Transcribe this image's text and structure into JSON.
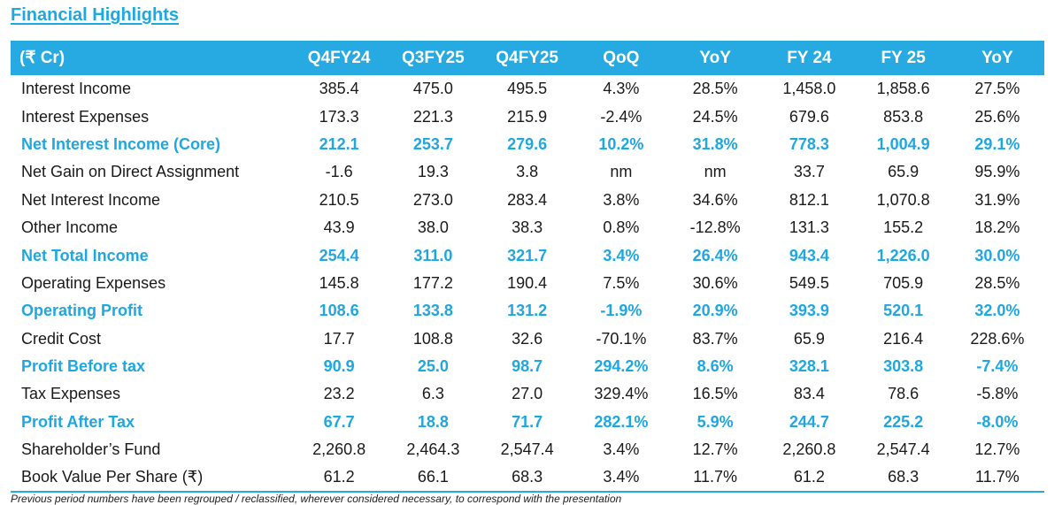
{
  "title": "Financial Highlights",
  "header": [
    "(₹ Cr)",
    "Q4FY24",
    "Q3FY25",
    "Q4FY25",
    "QoQ",
    "YoY",
    "FY 24",
    "FY 25",
    "YoY"
  ],
  "rows": [
    {
      "highlight": false,
      "cells": [
        "Interest Income",
        "385.4",
        "475.0",
        "495.5",
        "4.3%",
        "28.5%",
        "1,458.0",
        "1,858.6",
        "27.5%"
      ]
    },
    {
      "highlight": false,
      "cells": [
        "Interest Expenses",
        "173.3",
        "221.3",
        "215.9",
        "-2.4%",
        "24.5%",
        "679.6",
        "853.8",
        "25.6%"
      ]
    },
    {
      "highlight": true,
      "cells": [
        "Net Interest Income  (Core)",
        "212.1",
        "253.7",
        "279.6",
        "10.2%",
        "31.8%",
        "778.3",
        "1,004.9",
        "29.1%"
      ]
    },
    {
      "highlight": false,
      "cells": [
        "Net Gain on Direct Assignment",
        "-1.6",
        "19.3",
        "3.8",
        "nm",
        "nm",
        "33.7",
        "65.9",
        "95.9%"
      ]
    },
    {
      "highlight": false,
      "cells": [
        "Net Interest Income",
        "210.5",
        "273.0",
        "283.4",
        "3.8%",
        "34.6%",
        "812.1",
        "1,070.8",
        "31.9%"
      ]
    },
    {
      "highlight": false,
      "cells": [
        "Other Income",
        "43.9",
        "38.0",
        "38.3",
        "0.8%",
        "-12.8%",
        "131.3",
        "155.2",
        "18.2%"
      ]
    },
    {
      "highlight": true,
      "cells": [
        "Net Total Income",
        "254.4",
        "311.0",
        "321.7",
        "3.4%",
        "26.4%",
        "943.4",
        "1,226.0",
        "30.0%"
      ]
    },
    {
      "highlight": false,
      "cells": [
        "Operating Expenses",
        "145.8",
        "177.2",
        "190.4",
        "7.5%",
        "30.6%",
        "549.5",
        "705.9",
        "28.5%"
      ]
    },
    {
      "highlight": true,
      "cells": [
        "Operating Profit",
        "108.6",
        "133.8",
        "131.2",
        "-1.9%",
        "20.9%",
        "393.9",
        "520.1",
        "32.0%"
      ]
    },
    {
      "highlight": false,
      "cells": [
        "Credit Cost",
        "17.7",
        "108.8",
        "32.6",
        "-70.1%",
        "83.7%",
        "65.9",
        "216.4",
        "228.6%"
      ]
    },
    {
      "highlight": true,
      "cells": [
        "Profit Before tax",
        "90.9",
        "25.0",
        "98.7",
        "294.2%",
        "8.6%",
        "328.1",
        "303.8",
        "-7.4%"
      ]
    },
    {
      "highlight": false,
      "cells": [
        "Tax Expenses",
        "23.2",
        "6.3",
        "27.0",
        "329.4%",
        "16.5%",
        "83.4",
        "78.6",
        "-5.8%"
      ]
    },
    {
      "highlight": true,
      "cells": [
        "Profit After Tax",
        "67.7",
        "18.8",
        "71.7",
        "282.1%",
        "5.9%",
        "244.7",
        "225.2",
        "-8.0%"
      ]
    },
    {
      "highlight": false,
      "cells": [
        "Shareholder’s Fund",
        "2,260.8",
        "2,464.3",
        "2,547.4",
        "3.4%",
        "12.7%",
        "2,260.8",
        "2,547.4",
        "12.7%"
      ]
    },
    {
      "highlight": false,
      "cells": [
        "Book Value Per Share (₹)",
        "61.2",
        "66.1",
        "68.3",
        "3.4%",
        "11.7%",
        "61.2",
        "68.3",
        "11.7%"
      ]
    }
  ],
  "footnote": "Previous period numbers have been regrouped / reclassified, wherever considered necessary, to correspond with the presentation",
  "colors": {
    "accent": "#27a9e1",
    "highlight_text": "#1ea7e1"
  }
}
